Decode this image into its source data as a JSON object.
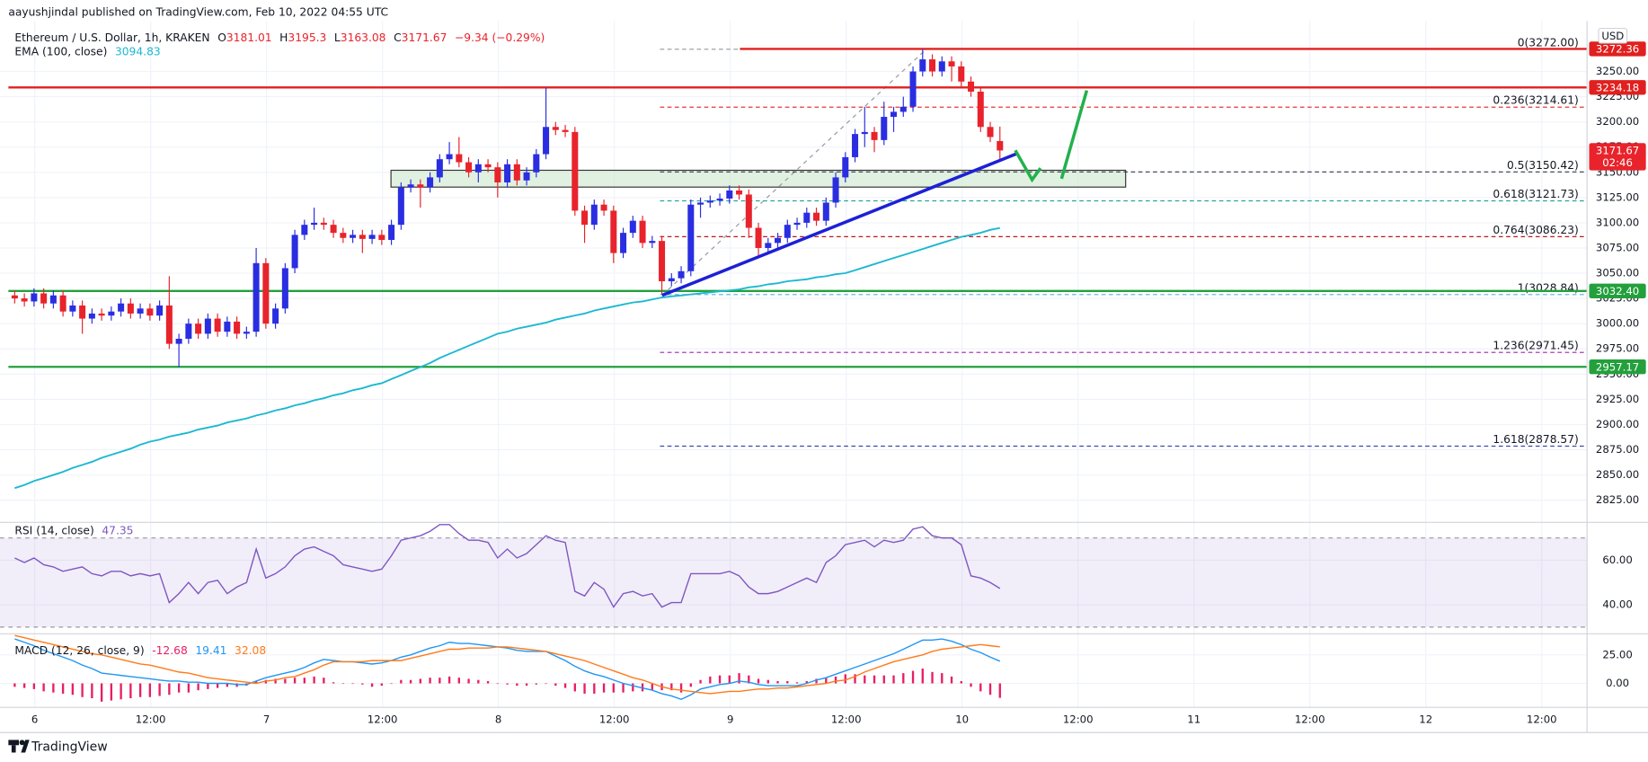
{
  "header": {
    "byline": "aayushjindal published on TradingView.com, Feb 10, 2022 04:55 UTC"
  },
  "footer": {
    "brand": "TradingView"
  },
  "chart_data": {
    "type": "candlestick",
    "title": "Ethereum / U.S. Dollar, 1h, KRAKEN",
    "ohlc_labels": [
      "O",
      "H",
      "L",
      "C"
    ],
    "change": "−9.34 (−0.29%)",
    "currency": "USD",
    "colors": {
      "up": "#2a2ee0",
      "down": "#e8232b"
    },
    "grid": true,
    "xticks": [
      "6",
      "12:00",
      "7",
      "12:00",
      "8",
      "12:00",
      "9",
      "12:00",
      "10",
      "12:00",
      "11",
      "12:00",
      "12",
      "12:00"
    ],
    "ylim": [
      2803,
      3300
    ],
    "yticks": [
      {
        "value": 3250,
        "label": "3250.00"
      },
      {
        "value": 3225,
        "label": "3225.00"
      },
      {
        "value": 3200,
        "label": "3200.00"
      },
      {
        "value": 3175,
        "label": "3175.00"
      },
      {
        "value": 3150,
        "label": "3150.00"
      },
      {
        "value": 3125,
        "label": "3125.00"
      },
      {
        "value": 3100,
        "label": "3100.00"
      },
      {
        "value": 3075,
        "label": "3075.00"
      },
      {
        "value": 3050,
        "label": "3050.00"
      },
      {
        "value": 3025,
        "label": "3025.00"
      },
      {
        "value": 3000,
        "label": "3000.00"
      },
      {
        "value": 2975,
        "label": "2975.00"
      },
      {
        "value": 2950,
        "label": "2950.00"
      },
      {
        "value": 2925,
        "label": "2925.00"
      },
      {
        "value": 2900,
        "label": "2900.00"
      },
      {
        "value": 2875,
        "label": "2875.00"
      },
      {
        "value": 2850,
        "label": "2850.00"
      },
      {
        "value": 2825,
        "label": "2825.00"
      }
    ],
    "open": [
      3028,
      3025,
      3022,
      3030,
      3020,
      3028,
      3012,
      3018,
      3005,
      3010,
      3008,
      3012,
      3020,
      3010,
      3015,
      3008,
      3018,
      2980,
      2985,
      3000,
      2990,
      3005,
      2992,
      3002,
      2990,
      2992,
      3060,
      3000,
      3015,
      3055,
      3088,
      3098,
      3100,
      3098,
      3090,
      3085,
      3088,
      3084,
      3088,
      3083,
      3098,
      3135,
      3138,
      3135,
      3145,
      3163,
      3168,
      3160,
      3150,
      3158,
      3155,
      3140,
      3158,
      3142,
      3150,
      3168,
      3195,
      3192,
      3190,
      3112,
      3098,
      3118,
      3112,
      3070,
      3090,
      3102,
      3080,
      3082,
      3042,
      3045,
      3052,
      3118,
      3120,
      3122,
      3124,
      3132,
      3128,
      3095,
      3075,
      3080,
      3085,
      3098,
      3100,
      3110,
      3102,
      3120,
      3145,
      3165,
      3188,
      3190,
      3182,
      3205,
      3210,
      3215,
      3250,
      3262,
      3250,
      3260,
      3255,
      3240,
      3230,
      3195,
      3181.01
    ],
    "high": [
      3033,
      3030,
      3035,
      3035,
      3033,
      3033,
      3023,
      3023,
      3015,
      3015,
      3017,
      3025,
      3025,
      3020,
      3020,
      3023,
      3047,
      2990,
      3005,
      3005,
      3010,
      3010,
      3007,
      3007,
      2997,
      3075,
      3065,
      3020,
      3060,
      3093,
      3103,
      3115,
      3105,
      3103,
      3095,
      3093,
      3093,
      3093,
      3093,
      3103,
      3140,
      3143,
      3143,
      3150,
      3168,
      3180,
      3185,
      3165,
      3163,
      3163,
      3160,
      3163,
      3163,
      3155,
      3173,
      3234,
      3200,
      3197,
      3195,
      3117,
      3123,
      3123,
      3117,
      3095,
      3107,
      3107,
      3087,
      3087,
      3050,
      3057,
      3123,
      3125,
      3127,
      3129,
      3137,
      3137,
      3133,
      3100,
      3085,
      3090,
      3103,
      3105,
      3115,
      3115,
      3125,
      3150,
      3170,
      3193,
      3215,
      3195,
      3220,
      3215,
      3225,
      3255,
      3272,
      3267,
      3265,
      3265,
      3260,
      3245,
      3235,
      3200,
      3195.3
    ],
    "low": [
      3020,
      3017,
      3017,
      3015,
      3015,
      3007,
      3007,
      2990,
      3000,
      3003,
      3003,
      3007,
      3005,
      3005,
      3003,
      3003,
      2975,
      2957,
      2980,
      2985,
      2985,
      2987,
      2987,
      2985,
      2985,
      2987,
      2995,
      2995,
      3010,
      3050,
      3083,
      3093,
      3093,
      3085,
      3080,
      3080,
      3070,
      3079,
      3078,
      3078,
      3093,
      3130,
      3115,
      3130,
      3140,
      3158,
      3155,
      3145,
      3140,
      3150,
      3125,
      3135,
      3137,
      3137,
      3145,
      3163,
      3187,
      3185,
      3107,
      3080,
      3093,
      3107,
      3060,
      3065,
      3085,
      3075,
      3075,
      3028.84,
      3037,
      3040,
      3047,
      3105,
      3115,
      3117,
      3119,
      3123,
      3085,
      3065,
      3070,
      3075,
      3080,
      3093,
      3095,
      3097,
      3097,
      3115,
      3140,
      3160,
      3175,
      3170,
      3177,
      3190,
      3205,
      3210,
      3245,
      3245,
      3245,
      3240,
      3235,
      3225,
      3190,
      3180,
      3163.08
    ],
    "close": [
      3025,
      3022,
      3030,
      3020,
      3028,
      3012,
      3018,
      3005,
      3010,
      3008,
      3012,
      3020,
      3010,
      3015,
      3008,
      3018,
      2980,
      2985,
      3000,
      2990,
      3005,
      2992,
      3002,
      2990,
      2992,
      3060,
      3000,
      3015,
      3055,
      3088,
      3098,
      3100,
      3098,
      3090,
      3085,
      3088,
      3084,
      3088,
      3083,
      3098,
      3135,
      3138,
      3135,
      3145,
      3163,
      3168,
      3160,
      3150,
      3158,
      3155,
      3140,
      3158,
      3142,
      3150,
      3168,
      3195,
      3192,
      3190,
      3112,
      3098,
      3118,
      3112,
      3070,
      3090,
      3102,
      3080,
      3082,
      3042,
      3045,
      3052,
      3118,
      3120,
      3122,
      3124,
      3132,
      3128,
      3095,
      3075,
      3080,
      3085,
      3098,
      3100,
      3110,
      3102,
      3120,
      3145,
      3165,
      3188,
      3190,
      3182,
      3205,
      3210,
      3215,
      3250,
      3262,
      3250,
      3260,
      3255,
      3240,
      3230,
      3195,
      3185,
      3171.67
    ],
    "countdown": "02:46",
    "ema": {
      "name": "EMA (100, close)",
      "color": "#1cb8d0",
      "values": [
        2837,
        2840,
        2844,
        2847,
        2850,
        2853,
        2857,
        2860,
        2863,
        2867,
        2870,
        2873,
        2876,
        2880,
        2883,
        2885,
        2888,
        2890,
        2892,
        2895,
        2897,
        2899,
        2902,
        2904,
        2906,
        2909,
        2911,
        2914,
        2916,
        2919,
        2921,
        2924,
        2926,
        2929,
        2931,
        2934,
        2936,
        2939,
        2941,
        2945,
        2949,
        2953,
        2957,
        2961,
        2966,
        2970,
        2974,
        2978,
        2982,
        2986,
        2990,
        2992,
        2995,
        2997,
        2999,
        3001,
        3004,
        3006,
        3008,
        3010,
        3013,
        3015,
        3017,
        3019,
        3021,
        3022,
        3024,
        3026,
        3027,
        3028,
        3029,
        3030,
        3031,
        3032,
        3033,
        3034,
        3036,
        3037,
        3039,
        3040,
        3042,
        3043,
        3044,
        3046,
        3047,
        3049,
        3050,
        3053,
        3056,
        3059,
        3062,
        3065,
        3068,
        3071,
        3074,
        3077,
        3080,
        3083,
        3086,
        3088,
        3090,
        3093,
        3094.83
      ]
    },
    "levels": [
      {
        "value": 3272.36,
        "label": "3272.36",
        "color": "#e0201f",
        "full": false
      },
      {
        "value": 3234.18,
        "label": "3234.18",
        "color": "#e0201f",
        "full": true
      },
      {
        "value": 3032.4,
        "label": "3032.40",
        "color": "#23a03c",
        "full": true
      },
      {
        "value": 2957.17,
        "label": "2957.17",
        "color": "#23a03c",
        "full": true
      }
    ],
    "fib": [
      {
        "value": 3272.0,
        "label": "0(3272.00)",
        "color": "#9598a1"
      },
      {
        "value": 3214.61,
        "label": "0.236(3214.61)",
        "color": "#e53935"
      },
      {
        "value": 3150.42,
        "label": "0.5(3150.42)",
        "color": "#363a45"
      },
      {
        "value": 3121.73,
        "label": "0.618(3121.73)",
        "color": "#26a69a"
      },
      {
        "value": 3086.23,
        "label": "0.764(3086.23)",
        "color": "#b71c1c"
      },
      {
        "value": 3028.84,
        "label": "1(3028.84)",
        "color": "#4fb3d9"
      },
      {
        "value": 2971.45,
        "label": "1.236(2971.45)",
        "color": "#9c27b0"
      },
      {
        "value": 2878.57,
        "label": "1.618(2878.57)",
        "color": "#3949ab"
      }
    ],
    "rsi": {
      "name": "RSI (14, close)",
      "color": "#7e57c2",
      "band": [
        30,
        70
      ],
      "ylim": [
        27,
        77
      ],
      "yticks": [
        {
          "value": 60,
          "label": "60.00"
        },
        {
          "value": 40,
          "label": "40.00"
        }
      ],
      "values": [
        61,
        59,
        61,
        58,
        57,
        55,
        56,
        57,
        54,
        53,
        55,
        55,
        53,
        54,
        53,
        54,
        41,
        45,
        50,
        45,
        50,
        51,
        45,
        48,
        50,
        65,
        52,
        54,
        57,
        62,
        65,
        66,
        64,
        62,
        58,
        57,
        56,
        55,
        56,
        62,
        69,
        70,
        71,
        73,
        76,
        76,
        72,
        69,
        69,
        68,
        61,
        65,
        61,
        63,
        67,
        71,
        69,
        68,
        46,
        44,
        50,
        47,
        39,
        45,
        46,
        44,
        45,
        39,
        41,
        41,
        54,
        54,
        54,
        54,
        55,
        53,
        48,
        45,
        45,
        46,
        48,
        50,
        52,
        50,
        59,
        62,
        67,
        68,
        69,
        66,
        69,
        68,
        69,
        74,
        75,
        71,
        70,
        70,
        67,
        53,
        52,
        50,
        47.35
      ]
    },
    "macd": {
      "name": "MACD (12, 26, close, 9)",
      "ylim": [
        -21,
        43.5
      ],
      "yticks": [
        {
          "value": 25,
          "label": "25.00"
        },
        {
          "value": 0,
          "label": "0.00"
        }
      ],
      "histogram_color": "#e91e63",
      "macd_color": "#2196f3",
      "signal_color": "#ff7a1a",
      "histogram": [
        -3,
        -4,
        -5,
        -7,
        -8,
        -9,
        -10,
        -12,
        -13,
        -16,
        -15,
        -14,
        -13,
        -12,
        -12,
        -11,
        -10,
        -8,
        -8,
        -6,
        -5,
        -4,
        -3,
        -3,
        -2,
        2,
        3,
        4,
        4,
        5,
        5,
        6,
        5,
        1,
        0,
        0,
        -1,
        -3,
        -2,
        0,
        3,
        3,
        4,
        5,
        5,
        6,
        5,
        4,
        3,
        2,
        0,
        -1,
        -2,
        -2,
        -1,
        0,
        -2,
        -4,
        -7,
        -9,
        -9,
        -8,
        -8,
        -8,
        -7,
        -7,
        -6,
        -6,
        -6,
        -8,
        -3,
        3,
        6,
        7,
        7,
        9,
        7,
        4,
        3,
        2,
        2,
        1,
        2,
        4,
        5,
        6,
        8,
        8,
        7,
        7,
        7,
        7,
        9,
        11,
        13,
        10,
        9,
        6,
        2,
        -3,
        -7,
        -10,
        -12.68
      ],
      "macd": [
        39,
        36,
        33,
        29,
        26,
        23,
        20,
        16,
        13,
        9,
        8,
        7,
        6,
        5,
        4,
        3,
        2,
        2,
        1,
        1,
        0,
        0,
        0,
        -1,
        -1,
        2,
        5,
        7,
        9,
        11,
        14,
        18,
        21,
        20,
        19,
        19,
        18,
        17,
        18,
        20,
        23,
        25,
        28,
        31,
        33,
        36,
        35,
        35,
        34,
        33,
        32,
        31,
        29,
        28,
        28,
        28,
        24,
        20,
        15,
        11,
        8,
        6,
        3,
        0,
        -2,
        -4,
        -6,
        -9,
        -11,
        -14,
        -10,
        -5,
        -3,
        -1,
        0,
        2,
        1,
        -1,
        -2,
        -2,
        -2,
        -2,
        0,
        3,
        5,
        8,
        11,
        14,
        17,
        20,
        23,
        26,
        30,
        34,
        38,
        38,
        39,
        37,
        34,
        30,
        27,
        23,
        19.41
      ],
      "signal": [
        42,
        40,
        38,
        36,
        34,
        32,
        30,
        28,
        26,
        25,
        23,
        21,
        19,
        17,
        16,
        14,
        12,
        10,
        9,
        7,
        5,
        4,
        3,
        2,
        1,
        0,
        2,
        3,
        5,
        6,
        9,
        12,
        16,
        19,
        19,
        19,
        19,
        20,
        20,
        20,
        20,
        22,
        24,
        26,
        28,
        30,
        30,
        31,
        31,
        31,
        32,
        32,
        31,
        30,
        29,
        28,
        26,
        24,
        22,
        20,
        17,
        14,
        11,
        8,
        5,
        3,
        0,
        -3,
        -5,
        -6,
        -7,
        -8,
        -9,
        -8,
        -7,
        -7,
        -6,
        -5,
        -5,
        -4,
        -4,
        -3,
        -2,
        -1,
        0,
        2,
        3,
        6,
        10,
        13,
        16,
        19,
        21,
        23,
        25,
        28,
        30,
        31,
        32,
        33,
        34,
        33,
        32.08
      ]
    }
  }
}
